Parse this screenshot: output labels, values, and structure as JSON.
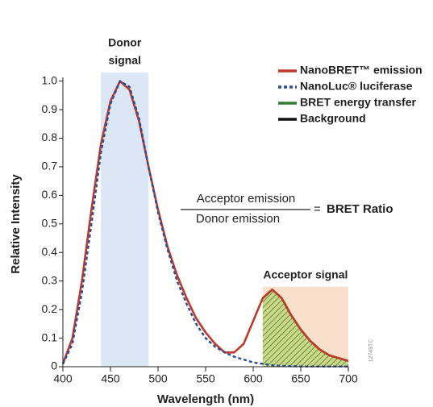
{
  "chart_data": {
    "type": "line",
    "xlabel": "Wavelength (nm)",
    "ylabel": "Relative Intensity",
    "x": [
      400,
      410,
      420,
      430,
      440,
      450,
      460,
      470,
      480,
      490,
      500,
      510,
      520,
      530,
      540,
      550,
      560,
      570,
      580,
      590,
      600,
      610,
      620,
      630,
      640,
      650,
      660,
      670,
      680,
      690,
      700
    ],
    "series": [
      {
        "name": "NanoBRET™ emission",
        "color": "#c0392b",
        "style": "solid",
        "values": [
          0.01,
          0.1,
          0.3,
          0.55,
          0.78,
          0.93,
          1.0,
          0.97,
          0.86,
          0.7,
          0.55,
          0.42,
          0.32,
          0.24,
          0.17,
          0.12,
          0.08,
          0.05,
          0.05,
          0.08,
          0.16,
          0.24,
          0.27,
          0.24,
          0.18,
          0.13,
          0.09,
          0.06,
          0.04,
          0.03,
          0.02
        ]
      },
      {
        "name": "NanoLuc® luciferase",
        "color": "#2b4c9b",
        "style": "dashed",
        "values": [
          0.01,
          0.08,
          0.26,
          0.5,
          0.75,
          0.92,
          1.0,
          0.98,
          0.87,
          0.7,
          0.54,
          0.41,
          0.3,
          0.22,
          0.15,
          0.1,
          0.07,
          0.05,
          0.035,
          0.025,
          0.015,
          0.01,
          0.005,
          0.003,
          0.002,
          0.001,
          0.001,
          0.001,
          0.001,
          0.001,
          0.001
        ]
      },
      {
        "name": "BRET energy transfer",
        "color": "#2e7d32",
        "style": "area",
        "values": [
          null,
          null,
          null,
          null,
          null,
          null,
          null,
          null,
          null,
          null,
          null,
          null,
          null,
          null,
          null,
          null,
          null,
          null,
          null,
          null,
          null,
          0.24,
          0.27,
          0.24,
          0.18,
          0.13,
          0.09,
          0.06,
          0.04,
          0.03,
          0.02
        ]
      },
      {
        "name": "Background",
        "color": "#111111",
        "style": "solid",
        "values": [
          null,
          null,
          null,
          null,
          null,
          null,
          null,
          null,
          null,
          null,
          null,
          null,
          null,
          null,
          null,
          null,
          null,
          null,
          null,
          null,
          null,
          null,
          null,
          null,
          null,
          null,
          null,
          null,
          null,
          null,
          null
        ]
      }
    ],
    "xlim": [
      400,
      700
    ],
    "ylim": [
      0,
      1.03
    ],
    "xticks": [
      400,
      450,
      500,
      550,
      600,
      650,
      700
    ],
    "yticks": [
      0,
      0.1,
      0.2,
      0.3,
      0.4,
      0.5,
      0.6,
      0.7,
      0.8,
      0.9,
      {
        "value": 1,
        "label": "1.0"
      }
    ],
    "grid": false,
    "legend": "top-right",
    "bands": [
      {
        "label": [
          "Donor",
          "signal"
        ],
        "xlim": [
          440,
          490
        ],
        "ylim": [
          0,
          1.03
        ],
        "color": "#dbe7f5"
      },
      {
        "label": [
          "Acceptor signal"
        ],
        "xlim": [
          610,
          700
        ],
        "ylim": [
          0,
          0.28
        ],
        "color": "#f8e0cc"
      }
    ],
    "formula": {
      "numerator": "Acceptor emission",
      "denominator": "Donor emission",
      "equals": "=",
      "result": "BRET Ratio"
    },
    "code": "12749TC"
  }
}
